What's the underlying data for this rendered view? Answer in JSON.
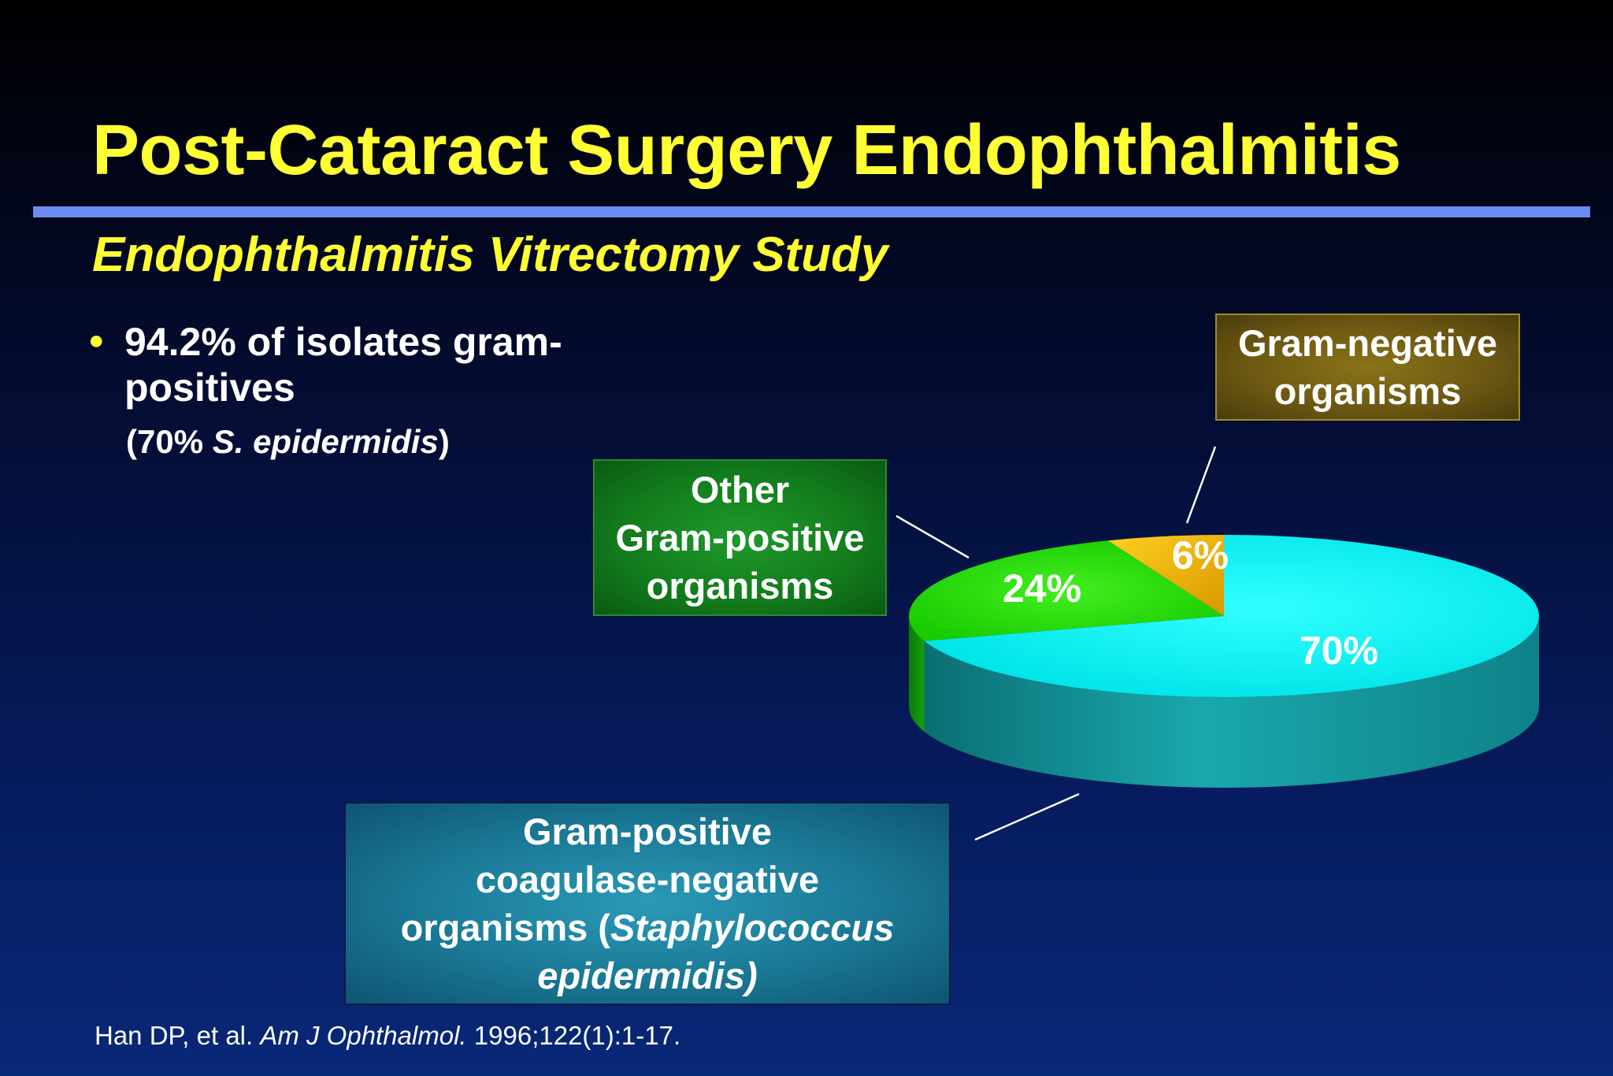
{
  "slide": {
    "title": "Post-Cataract Surgery Endophthalmitis",
    "subtitle": "Endophthalmitis Vitrectomy Study",
    "bullet": {
      "main": "94.2% of isolates gram-positives",
      "sub_open": "(70% ",
      "sub_italic": "S. epidermidis",
      "sub_close": ")"
    },
    "citation": {
      "authors": "Han DP, et al. ",
      "journal": "Am J Ophthalmol.",
      "details": " 1996;122(1):1-17."
    }
  },
  "callouts": {
    "gram_negative": {
      "line1": "Gram-negative",
      "line2": "organisms"
    },
    "other_gram_positive": {
      "line1": "Other",
      "line2": "Gram-positive",
      "line3": "organisms"
    },
    "coag_negative": {
      "line1": "Gram-positive",
      "line2": "coagulase-negative",
      "line3_plain": "organisms (",
      "line3_italic": "Staphylococcus",
      "line4_italic": "epidermidis)"
    }
  },
  "chart_data": {
    "type": "pie",
    "style": "3d",
    "slices": [
      {
        "label": "Gram-positive coagulase-negative organisms (Staphylococcus epidermidis)",
        "value": 70,
        "display": "70%",
        "color": "#00f0f0"
      },
      {
        "label": "Other Gram-positive organisms",
        "value": 24,
        "display": "24%",
        "color": "#22dd00"
      },
      {
        "label": "Gram-negative organisms",
        "value": 6,
        "display": "6%",
        "color": "#f0b800"
      }
    ]
  },
  "colors": {
    "title": "#ffff33",
    "rule": "#6b8cf0",
    "text": "#ffffff"
  }
}
